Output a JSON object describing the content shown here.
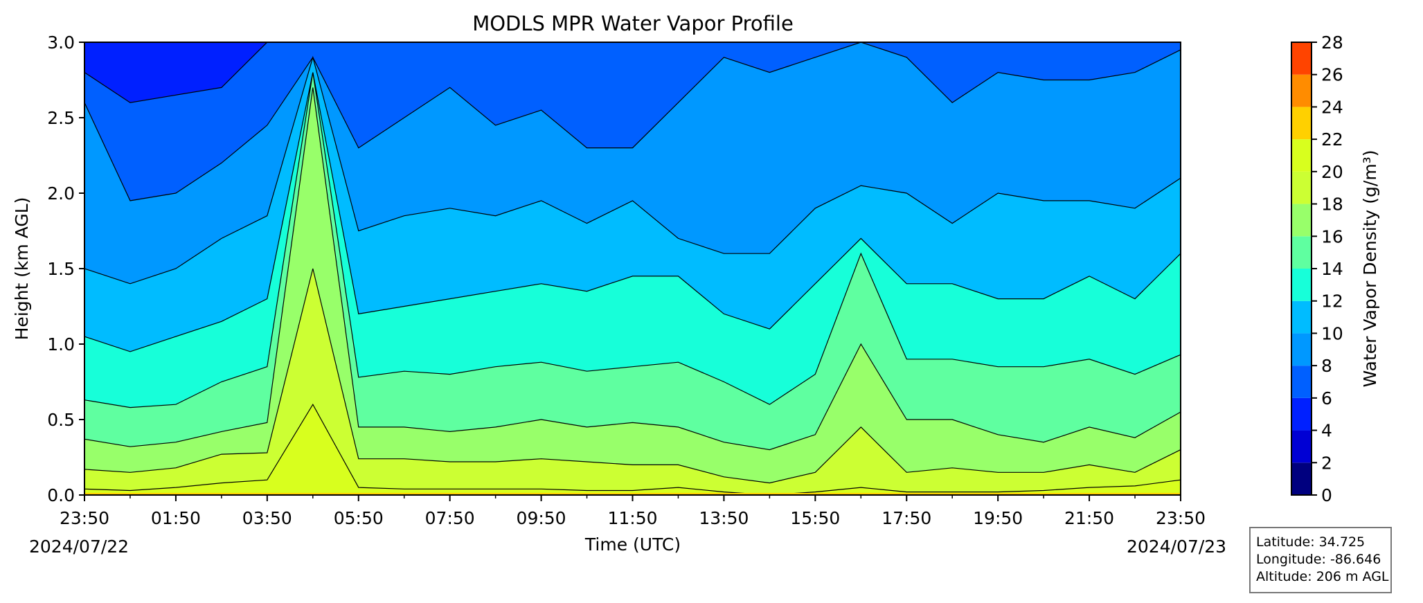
{
  "chart_data": {
    "type": "heatmap",
    "title": "MODLS MPR Water Vapor Profile",
    "xlabel": "Time (UTC)",
    "ylabel": "Height (km AGL)",
    "x_tick_labels": [
      "23:50",
      "01:50",
      "03:50",
      "05:50",
      "07:50",
      "09:50",
      "11:50",
      "13:50",
      "15:50",
      "17:50",
      "19:50",
      "21:50",
      "23:50"
    ],
    "x_start_date": "2024/07/22",
    "x_end_date": "2024/07/23",
    "y_ticks": [
      0.0,
      0.5,
      1.0,
      1.5,
      2.0,
      2.5,
      3.0
    ],
    "ylim": [
      0.0,
      3.0
    ],
    "colorbar": {
      "label": "Water Vapor Density (g/m³)",
      "ticks": [
        0,
        2,
        4,
        6,
        8,
        10,
        12,
        14,
        16,
        18,
        20,
        22,
        24,
        26,
        28
      ],
      "colors": [
        "#00007f",
        "#0000d4",
        "#0020ff",
        "#0060ff",
        "#0098ff",
        "#00bcff",
        "#17ffd9",
        "#5fffa0",
        "#98ff6a",
        "#ccff33",
        "#d8ff1e",
        "#ffd000",
        "#ff8c00",
        "#ff4400",
        "#d50000",
        "#7f0000"
      ]
    },
    "series": [
      {
        "level": 6,
        "heights": [
          2.8,
          2.6,
          2.65,
          2.7,
          3.0,
          3.0,
          3.0,
          3.0,
          3.0,
          3.0,
          3.0,
          3.0,
          3.0,
          3.0,
          3.0,
          3.0,
          3.0,
          3.0,
          3.0,
          3.0,
          3.0,
          3.0,
          3.0,
          3.0,
          3.0
        ]
      },
      {
        "level": 8,
        "heights": [
          2.6,
          1.95,
          2.0,
          2.2,
          2.45,
          2.9,
          2.3,
          2.5,
          2.7,
          2.45,
          2.55,
          2.3,
          2.3,
          2.6,
          2.9,
          2.8,
          2.9,
          3.0,
          2.9,
          2.6,
          2.8,
          2.75,
          2.75,
          2.8,
          2.95
        ]
      },
      {
        "level": 10,
        "heights": [
          1.5,
          1.4,
          1.5,
          1.7,
          1.85,
          2.9,
          1.75,
          1.85,
          1.9,
          1.85,
          1.95,
          1.8,
          1.95,
          1.7,
          1.6,
          1.6,
          1.9,
          2.05,
          2.0,
          1.8,
          2.0,
          1.95,
          1.95,
          1.9,
          2.1
        ]
      },
      {
        "level": 12,
        "heights": [
          1.05,
          0.95,
          1.05,
          1.15,
          1.3,
          2.8,
          1.2,
          1.25,
          1.3,
          1.35,
          1.4,
          1.35,
          1.45,
          1.45,
          1.2,
          1.1,
          1.4,
          1.7,
          1.4,
          1.4,
          1.3,
          1.3,
          1.45,
          1.3,
          1.6
        ]
      },
      {
        "level": 14,
        "heights": [
          0.63,
          0.58,
          0.6,
          0.75,
          0.85,
          2.8,
          0.78,
          0.82,
          0.8,
          0.85,
          0.88,
          0.82,
          0.85,
          0.88,
          0.75,
          0.6,
          0.8,
          1.6,
          0.9,
          0.9,
          0.85,
          0.85,
          0.9,
          0.8,
          0.93
        ]
      },
      {
        "level": 16,
        "heights": [
          0.37,
          0.32,
          0.35,
          0.42,
          0.48,
          2.7,
          0.45,
          0.45,
          0.42,
          0.45,
          0.5,
          0.45,
          0.48,
          0.45,
          0.35,
          0.3,
          0.4,
          1.0,
          0.5,
          0.5,
          0.4,
          0.35,
          0.45,
          0.38,
          0.55
        ]
      },
      {
        "level": 18,
        "heights": [
          0.17,
          0.15,
          0.18,
          0.27,
          0.28,
          1.5,
          0.24,
          0.24,
          0.22,
          0.22,
          0.24,
          0.22,
          0.2,
          0.2,
          0.12,
          0.08,
          0.15,
          0.45,
          0.15,
          0.18,
          0.15,
          0.15,
          0.2,
          0.15,
          0.3
        ]
      },
      {
        "level": 20,
        "heights": [
          0.04,
          0.03,
          0.05,
          0.08,
          0.1,
          0.6,
          0.05,
          0.04,
          0.04,
          0.04,
          0.04,
          0.03,
          0.03,
          0.05,
          0.02,
          0.0,
          0.02,
          0.05,
          0.02,
          0.02,
          0.02,
          0.03,
          0.05,
          0.06,
          0.1
        ]
      }
    ]
  },
  "info": {
    "latitude": "Latitude: 34.725",
    "longitude": "Longitude: -86.646",
    "altitude": "Altitude: 206 m AGL"
  }
}
